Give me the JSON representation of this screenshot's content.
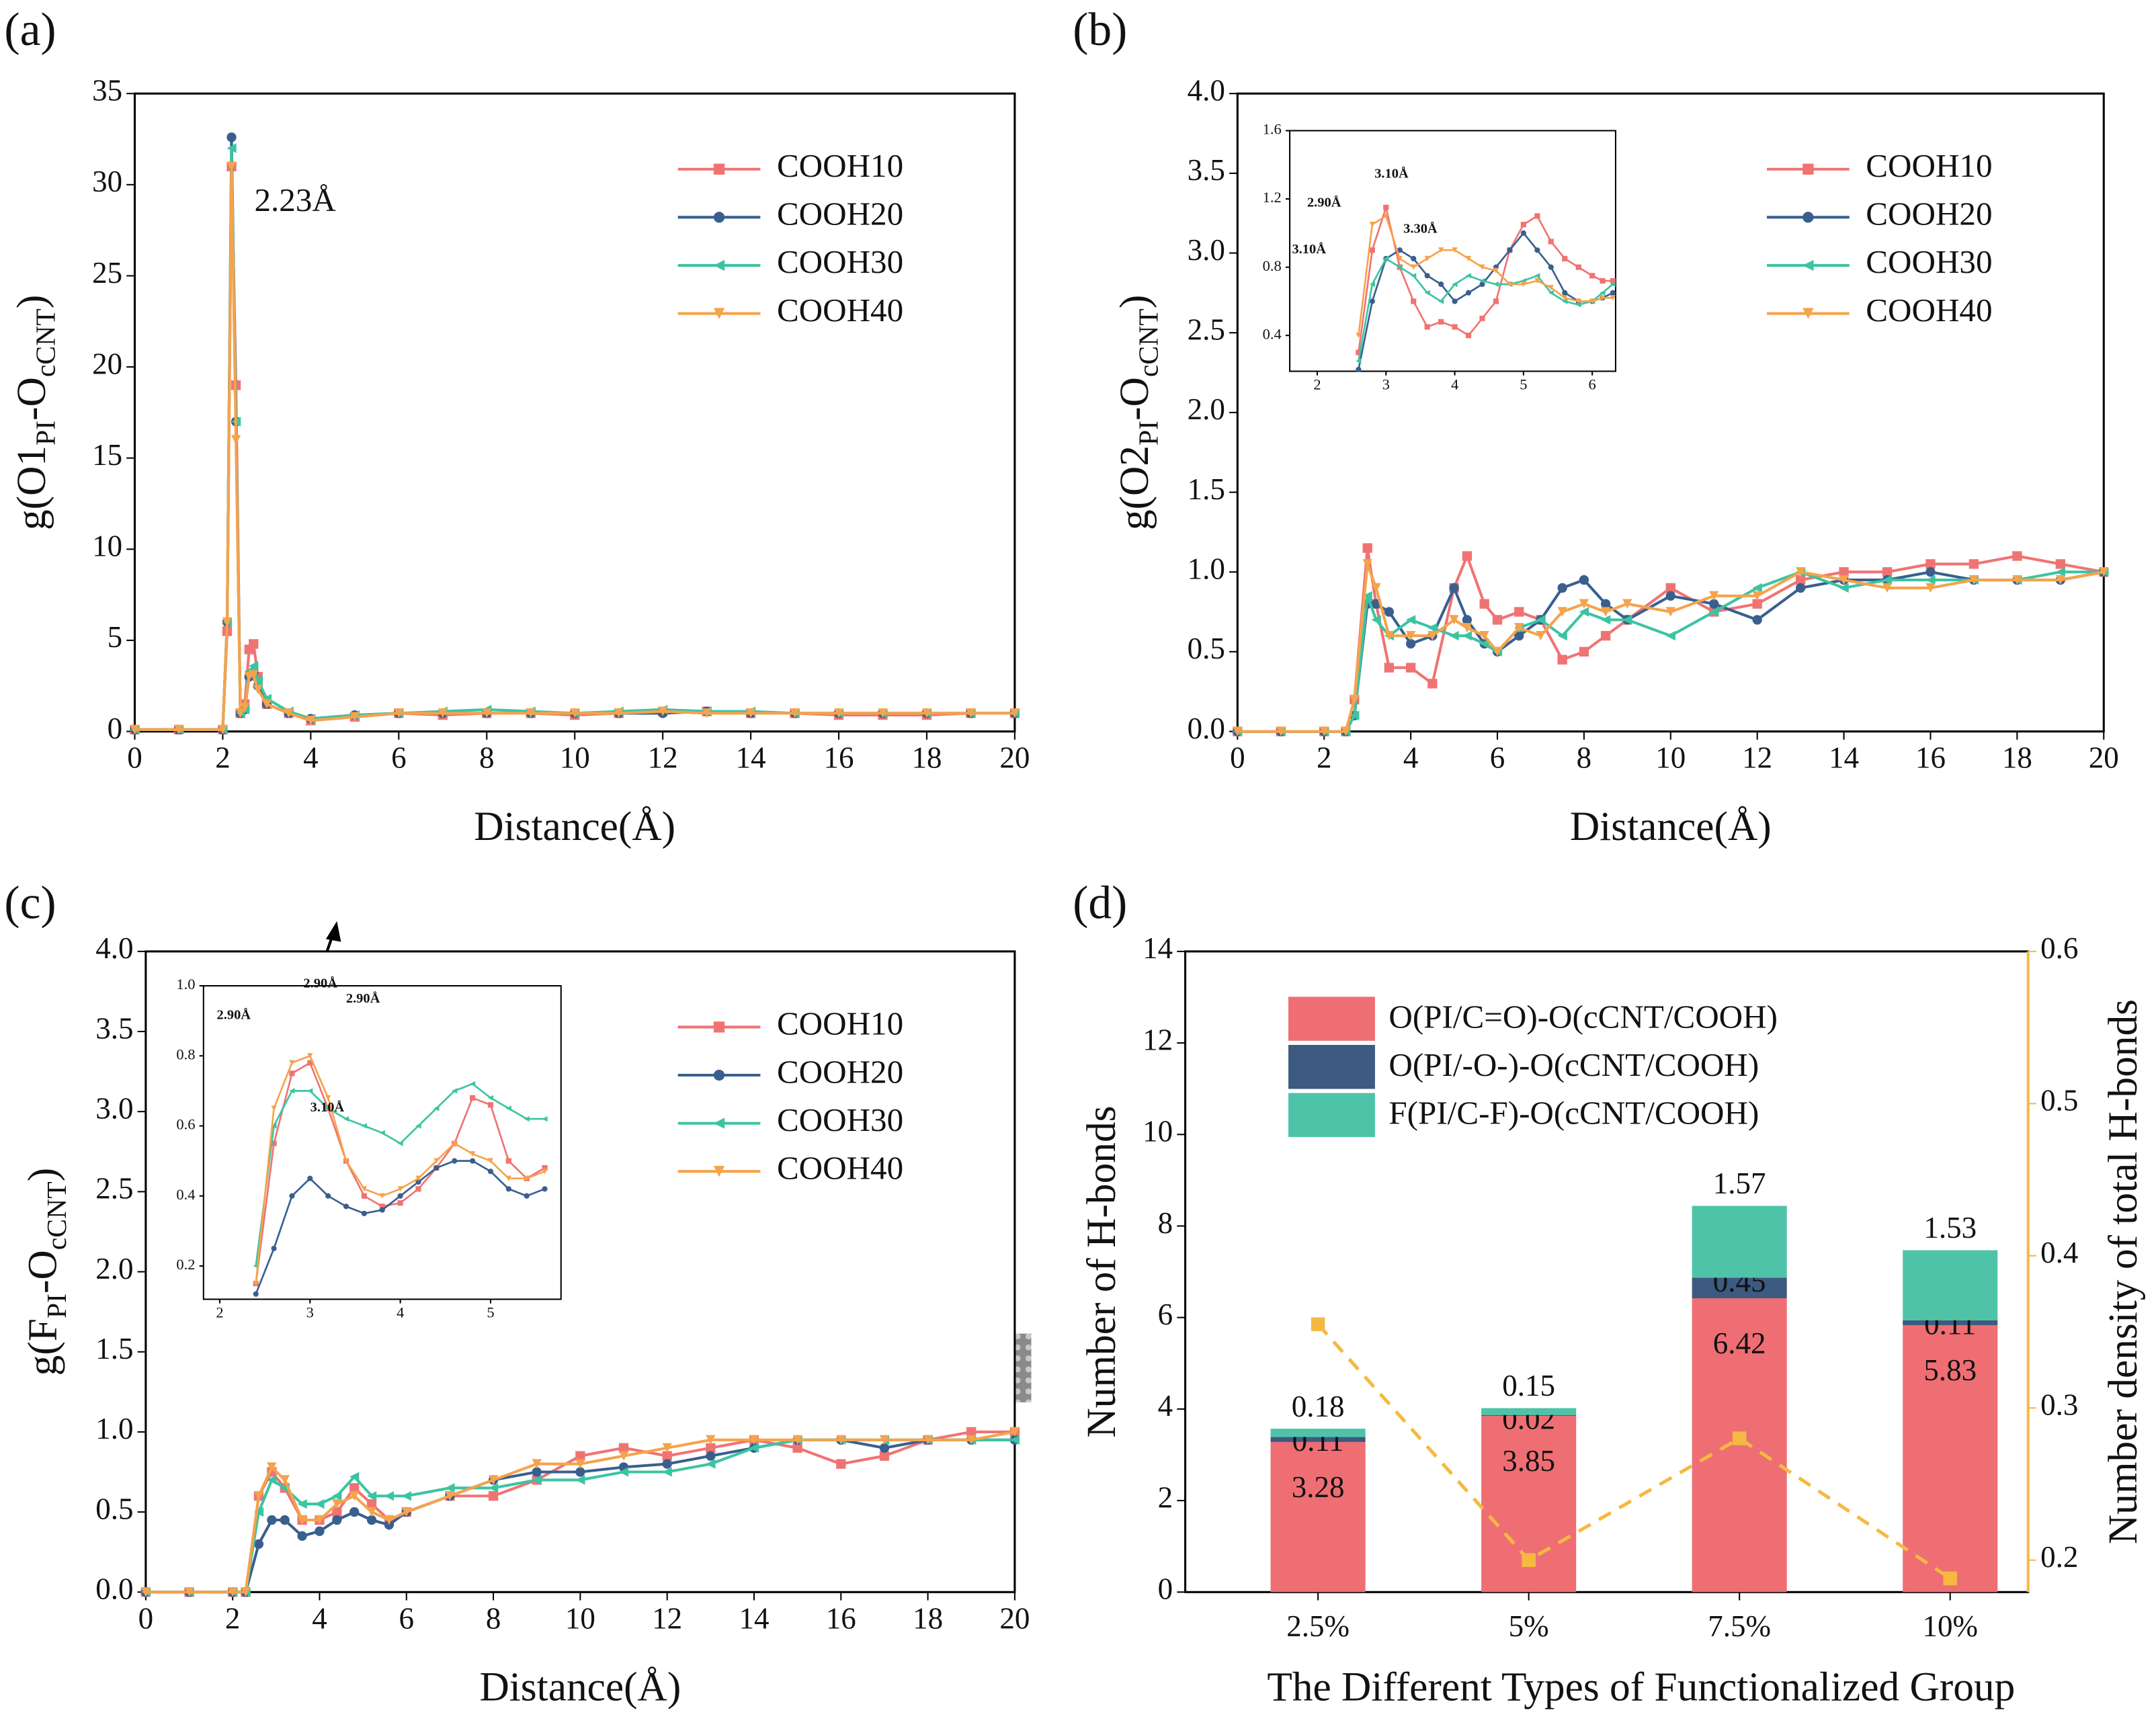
{
  "chart_data": [
    {
      "type": "line",
      "panel_label": "(a)",
      "x_label": "Distance(Å)",
      "y_label": [
        "g(O1",
        "PI",
        "-O",
        "cCNT",
        ")"
      ],
      "xlim": [
        0,
        20
      ],
      "ylim": [
        0,
        35
      ],
      "xticks": [
        0,
        2,
        4,
        6,
        8,
        10,
        12,
        14,
        16,
        18,
        20
      ],
      "yticks": [
        0,
        5,
        10,
        15,
        20,
        25,
        30,
        35
      ],
      "legend": "upper right",
      "annotations": [
        "2.23Å"
      ],
      "x": [
        0,
        1,
        2,
        2.1,
        2.2,
        2.3,
        2.4,
        2.5,
        2.6,
        2.7,
        2.8,
        3,
        3.5,
        4,
        5,
        6,
        7,
        8,
        9,
        10,
        11,
        12,
        13,
        14,
        15,
        16,
        17,
        18,
        19,
        20
      ],
      "series": [
        {
          "name": "COOH10",
          "color": "#f07373",
          "marker": "square",
          "values": [
            0.1,
            0.1,
            0.1,
            5.5,
            31,
            19,
            1,
            1.5,
            4.5,
            4.8,
            3,
            1.5,
            1,
            0.6,
            0.8,
            1,
            0.9,
            1,
            1,
            0.9,
            1,
            1.1,
            1.1,
            1,
            1,
            0.9,
            0.9,
            0.9,
            1,
            1
          ]
        },
        {
          "name": "COOH20",
          "color": "#3a5f8f",
          "marker": "circle",
          "values": [
            0.1,
            0.1,
            0.1,
            6,
            32.6,
            17,
            1,
            1.2,
            3,
            3.2,
            2.5,
            1.5,
            1,
            0.7,
            0.9,
            1,
            1,
            1,
            1,
            1,
            1,
            1,
            1.1,
            1,
            1,
            1,
            1,
            1,
            1,
            1
          ]
        },
        {
          "name": "COOH30",
          "color": "#3cc4a2",
          "marker": "triangle-left",
          "values": [
            0.1,
            0.1,
            0.1,
            6,
            32,
            17,
            1,
            1.2,
            3.3,
            3.6,
            2.8,
            1.8,
            1.1,
            0.7,
            0.9,
            1,
            1.1,
            1.2,
            1.1,
            1,
            1.1,
            1.2,
            1.1,
            1.1,
            1,
            1,
            1,
            1,
            1,
            1
          ]
        },
        {
          "name": "COOH40",
          "color": "#f5a34c",
          "marker": "triangle-down",
          "values": [
            0.1,
            0.1,
            0.1,
            6,
            31,
            16,
            1,
            1.3,
            3,
            3.1,
            2.3,
            1.5,
            1,
            0.6,
            0.8,
            1,
            1,
            1,
            1,
            1,
            1,
            1.1,
            1,
            1,
            1,
            1,
            1,
            1,
            1,
            1
          ]
        }
      ]
    },
    {
      "type": "line",
      "panel_label": "(b)",
      "x_label": "Distance(Å)",
      "y_label": [
        "g(O2",
        "PI",
        "-O",
        "cCNT",
        ")"
      ],
      "xlim": [
        0,
        20
      ],
      "ylim": [
        0,
        4
      ],
      "xticks": [
        0,
        2,
        4,
        6,
        8,
        10,
        12,
        14,
        16,
        18,
        20
      ],
      "yticks": [
        {
          "value": 0,
          "label": "0.0"
        },
        0.5,
        {
          "value": 1,
          "label": "1.0"
        },
        1.5,
        {
          "value": 2,
          "label": "2.0"
        },
        2.5,
        {
          "value": 3,
          "label": "3.0"
        },
        3.5,
        {
          "value": 4,
          "label": "4.0"
        }
      ],
      "legend": "upper right",
      "x": [
        0,
        1,
        2,
        2.5,
        2.7,
        3,
        3.2,
        3.5,
        4,
        4.5,
        5,
        5.3,
        5.7,
        6,
        6.5,
        7,
        7.5,
        8,
        8.5,
        9,
        10,
        11,
        12,
        13,
        14,
        15,
        16,
        17,
        18,
        19,
        20
      ],
      "series": [
        {
          "name": "COOH10",
          "color": "#f07373",
          "marker": "square",
          "values": [
            0,
            0,
            0,
            0,
            0.2,
            1.15,
            0.8,
            0.4,
            0.4,
            0.3,
            0.9,
            1.1,
            0.8,
            0.7,
            0.75,
            0.7,
            0.45,
            0.5,
            0.6,
            0.7,
            0.9,
            0.75,
            0.8,
            0.95,
            1.0,
            1.0,
            1.05,
            1.05,
            1.1,
            1.05,
            1.0
          ]
        },
        {
          "name": "COOH20",
          "color": "#3a5f8f",
          "marker": "circle",
          "values": [
            0,
            0,
            0,
            0,
            0.1,
            0.8,
            0.8,
            0.75,
            0.55,
            0.6,
            0.9,
            0.7,
            0.55,
            0.5,
            0.6,
            0.7,
            0.9,
            0.95,
            0.8,
            0.7,
            0.85,
            0.8,
            0.7,
            0.9,
            0.95,
            0.95,
            1.0,
            0.95,
            0.95,
            0.95,
            1.0
          ]
        },
        {
          "name": "COOH30",
          "color": "#3cc4a2",
          "marker": "triangle-left",
          "values": [
            0,
            0,
            0,
            0,
            0.1,
            0.85,
            0.7,
            0.6,
            0.7,
            0.65,
            0.6,
            0.6,
            0.55,
            0.5,
            0.65,
            0.7,
            0.6,
            0.75,
            0.7,
            0.7,
            0.6,
            0.75,
            0.9,
            1.0,
            0.9,
            0.95,
            0.95,
            0.95,
            0.95,
            1.0,
            1.0
          ]
        },
        {
          "name": "COOH40",
          "color": "#f5a34c",
          "marker": "triangle-down",
          "values": [
            0,
            0,
            0,
            0,
            0.2,
            1.05,
            0.9,
            0.6,
            0.6,
            0.6,
            0.7,
            0.65,
            0.6,
            0.5,
            0.65,
            0.6,
            0.75,
            0.8,
            0.75,
            0.8,
            0.75,
            0.85,
            0.85,
            1.0,
            0.95,
            0.9,
            0.9,
            0.95,
            0.95,
            0.95,
            1.0
          ]
        }
      ],
      "inset": {
        "type": "line",
        "xlim": [
          1.6,
          6.34
        ],
        "ylim": [
          0.19,
          1.6
        ],
        "xticks": [
          2,
          3,
          4,
          5,
          6
        ],
        "yticks": [
          0.4,
          0.8,
          1.2,
          1.6
        ],
        "annotations": [
          "3.10Å",
          "2.90Å",
          "3.30Å",
          "3.10Å"
        ],
        "x": [
          2.6,
          2.8,
          3,
          3.2,
          3.4,
          3.6,
          3.8,
          4,
          4.2,
          4.4,
          4.6,
          4.8,
          5,
          5.2,
          5.4,
          5.6,
          5.8,
          6,
          6.15,
          6.3
        ],
        "series": [
          {
            "color": "#f07373",
            "marker": "square",
            "values": [
              0.3,
              0.9,
              1.15,
              0.8,
              0.6,
              0.45,
              0.48,
              0.45,
              0.4,
              0.5,
              0.6,
              0.9,
              1.05,
              1.1,
              0.95,
              0.85,
              0.8,
              0.75,
              0.72,
              0.72
            ]
          },
          {
            "color": "#3a5f8f",
            "marker": "circle",
            "values": [
              0.2,
              0.6,
              0.85,
              0.9,
              0.85,
              0.75,
              0.7,
              0.6,
              0.65,
              0.7,
              0.8,
              0.9,
              1.0,
              0.9,
              0.8,
              0.65,
              0.6,
              0.6,
              0.62,
              0.65
            ]
          },
          {
            "color": "#3cc4a2",
            "marker": "triangle-left",
            "values": [
              0.25,
              0.7,
              0.85,
              0.8,
              0.75,
              0.65,
              0.6,
              0.7,
              0.75,
              0.72,
              0.7,
              0.7,
              0.72,
              0.75,
              0.65,
              0.6,
              0.58,
              0.6,
              0.65,
              0.7
            ]
          },
          {
            "color": "#f5a34c",
            "marker": "triangle-down",
            "values": [
              0.4,
              1.05,
              1.1,
              0.85,
              0.8,
              0.85,
              0.9,
              0.9,
              0.85,
              0.8,
              0.78,
              0.7,
              0.7,
              0.72,
              0.68,
              0.62,
              0.6,
              0.6,
              0.62,
              0.62
            ]
          }
        ]
      }
    },
    {
      "type": "line",
      "panel_label": "(c)",
      "x_label": "Distance(Å)",
      "y_label": [
        "g(F",
        "PI",
        "-O",
        "cCNT",
        ")"
      ],
      "xlim": [
        0,
        20
      ],
      "ylim": [
        0,
        4
      ],
      "xticks": [
        0,
        2,
        4,
        6,
        8,
        10,
        12,
        14,
        16,
        18,
        20
      ],
      "yticks": [
        {
          "value": 0,
          "label": "0.0"
        },
        0.5,
        {
          "value": 1,
          "label": "1.0"
        },
        1.5,
        {
          "value": 2,
          "label": "2.0"
        },
        2.5,
        {
          "value": 3,
          "label": "3.0"
        },
        3.5,
        {
          "value": 4,
          "label": "4.0"
        }
      ],
      "legend": "upper right",
      "x": [
        0,
        1,
        2,
        2.3,
        2.6,
        2.9,
        3.2,
        3.6,
        4,
        4.4,
        4.8,
        5.2,
        5.6,
        6,
        7,
        8,
        9,
        10,
        11,
        12,
        13,
        14,
        15,
        16,
        17,
        18,
        19,
        20
      ],
      "series": [
        {
          "name": "COOH10",
          "color": "#f07373",
          "marker": "square",
          "values": [
            0,
            0,
            0,
            0,
            0.6,
            0.75,
            0.65,
            0.45,
            0.45,
            0.5,
            0.65,
            0.55,
            0.45,
            0.5,
            0.6,
            0.6,
            0.7,
            0.85,
            0.9,
            0.85,
            0.9,
            0.95,
            0.9,
            0.8,
            0.85,
            0.95,
            1.0,
            1.0
          ]
        },
        {
          "name": "COOH20",
          "color": "#3a5f8f",
          "marker": "circle",
          "values": [
            0,
            0,
            0,
            0,
            0.3,
            0.45,
            0.45,
            0.35,
            0.38,
            0.45,
            0.5,
            0.45,
            0.42,
            0.5,
            0.6,
            0.7,
            0.75,
            0.75,
            0.78,
            0.8,
            0.85,
            0.9,
            0.95,
            0.95,
            0.9,
            0.95,
            0.95,
            0.95
          ]
        },
        {
          "name": "COOH30",
          "color": "#3cc4a2",
          "marker": "triangle-left",
          "values": [
            0,
            0,
            0,
            0,
            0.5,
            0.7,
            0.65,
            0.55,
            0.55,
            0.6,
            0.72,
            0.6,
            0.6,
            0.6,
            0.65,
            0.65,
            0.7,
            0.7,
            0.75,
            0.75,
            0.8,
            0.9,
            0.95,
            0.95,
            0.95,
            0.95,
            0.95,
            0.95
          ]
        },
        {
          "name": "COOH40",
          "color": "#f5a34c",
          "marker": "triangle-down",
          "values": [
            0,
            0,
            0,
            0,
            0.6,
            0.78,
            0.7,
            0.45,
            0.45,
            0.55,
            0.6,
            0.5,
            0.45,
            0.5,
            0.6,
            0.7,
            0.8,
            0.8,
            0.85,
            0.9,
            0.95,
            0.95,
            0.95,
            0.95,
            0.95,
            0.95,
            0.95,
            1.0
          ]
        }
      ],
      "inset": {
        "type": "line",
        "xlim": [
          1.82,
          5.78
        ],
        "ylim": [
          0.105,
          1
        ],
        "xticks": [
          2,
          3,
          4,
          5
        ],
        "yticks": [
          0.2,
          0.4,
          0.6,
          0.8,
          {
            "value": 1,
            "label": "1.0"
          }
        ],
        "annotations": [
          "2.90Å",
          "2.90Å",
          "2.90Å",
          "3.10Å"
        ],
        "x": [
          2.4,
          2.6,
          2.8,
          3,
          3.2,
          3.4,
          3.6,
          3.8,
          4,
          4.2,
          4.4,
          4.6,
          4.8,
          5,
          5.2,
          5.4,
          5.6
        ],
        "series": [
          {
            "color": "#f07373",
            "marker": "square",
            "values": [
              0.15,
              0.55,
              0.75,
              0.78,
              0.65,
              0.5,
              0.4,
              0.37,
              0.38,
              0.42,
              0.48,
              0.55,
              0.68,
              0.66,
              0.5,
              0.45,
              0.48
            ]
          },
          {
            "color": "#3a5f8f",
            "marker": "circle",
            "values": [
              0.12,
              0.25,
              0.4,
              0.45,
              0.4,
              0.37,
              0.35,
              0.36,
              0.4,
              0.44,
              0.48,
              0.5,
              0.5,
              0.47,
              0.42,
              0.4,
              0.42
            ]
          },
          {
            "color": "#3cc4a2",
            "marker": "triangle-left",
            "values": [
              0.2,
              0.6,
              0.7,
              0.7,
              0.65,
              0.62,
              0.6,
              0.58,
              0.55,
              0.6,
              0.65,
              0.7,
              0.72,
              0.68,
              0.65,
              0.62,
              0.62
            ]
          },
          {
            "color": "#f5a34c",
            "marker": "triangle-down",
            "values": [
              0.15,
              0.65,
              0.78,
              0.8,
              0.68,
              0.5,
              0.42,
              0.4,
              0.42,
              0.45,
              0.5,
              0.55,
              0.52,
              0.5,
              0.45,
              0.45,
              0.47
            ]
          }
        ]
      }
    },
    {
      "type": "bar",
      "stacked": true,
      "panel_label": "(d)",
      "x_label": "The Different Types of Functionalized Group",
      "y_label": "Number of H-bonds",
      "y2_label": "Number density of total H-bonds",
      "y2_color": "#f5b942",
      "categories": [
        "2.5%",
        "5%",
        "7.5%",
        "10%"
      ],
      "ylim": [
        0,
        14
      ],
      "yticks": [
        0,
        2,
        4,
        6,
        8,
        10,
        12,
        14
      ],
      "y2lim": [
        0.179,
        0.6
      ],
      "y2ticks": [
        0.2,
        0.3,
        0.4,
        0.5,
        0.6
      ],
      "legend": "upper left",
      "series": [
        {
          "name": "O(PI/C=O)-O(cCNT/COOH)",
          "color": "#ee6e73",
          "values": [
            3.28,
            3.85,
            6.42,
            5.83
          ]
        },
        {
          "name": "O(PI/-O-)-O(cCNT/COOH)",
          "color": "#3d5a80",
          "values": [
            0.11,
            0.02,
            0.45,
            0.11
          ]
        },
        {
          "name": "F(PI/C-F)-O(cCNT/COOH)",
          "color": "#4fc3a8",
          "values": [
            0.18,
            0.15,
            1.57,
            1.53
          ]
        },
        {
          "type": "line",
          "axis": "y2",
          "color": "#f5b942",
          "marker": "square",
          "values": [
            0.355,
            0.2,
            0.28,
            0.188
          ]
        }
      ]
    }
  ]
}
